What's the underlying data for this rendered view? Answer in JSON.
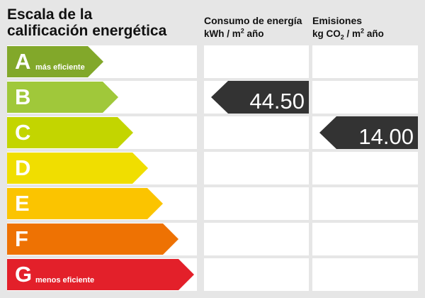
{
  "title_line1": "Escala de la",
  "title_line2": "calificación energética",
  "consumo_header": {
    "line1": "Consumo de energía",
    "unit_prefix": "kWh / m",
    "unit_sup": "2",
    "unit_suffix": " año"
  },
  "emisiones_header": {
    "line1": "Emisiones",
    "unit_prefix": "kg CO",
    "unit_sub": "2",
    "unit_mid": " / m",
    "unit_sup": "2",
    "unit_suffix": " año"
  },
  "ratings": [
    {
      "letter": "A",
      "description": "más eficiente",
      "color": "#82a82a"
    },
    {
      "letter": "B",
      "description": "",
      "color": "#a0c83a"
    },
    {
      "letter": "C",
      "description": "",
      "color": "#c3d500"
    },
    {
      "letter": "D",
      "description": "",
      "color": "#f0de00"
    },
    {
      "letter": "E",
      "description": "",
      "color": "#fbc400"
    },
    {
      "letter": "F",
      "description": "",
      "color": "#ee7203"
    },
    {
      "letter": "G",
      "description": "menos eficiente",
      "color": "#e3202a"
    }
  ],
  "consumo": {
    "value": "44.50",
    "rating": "B"
  },
  "emisiones": {
    "value": "14.00",
    "rating": "C"
  },
  "indicator_color": "#333333"
}
